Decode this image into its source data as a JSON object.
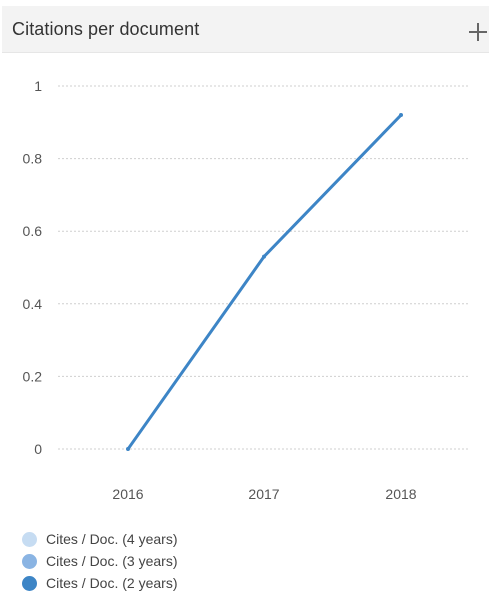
{
  "card": {
    "title": "Citations per document"
  },
  "icons": {
    "expand": "plus-icon"
  },
  "colors": {
    "line": "#3d85c6",
    "grid": "#cfcfcf",
    "legend_4y": "#c6dcf2",
    "legend_3y": "#8ab4e3",
    "legend_2y": "#3d85c6"
  },
  "chart_data": {
    "type": "line",
    "categories": [
      "2016",
      "2017",
      "2018"
    ],
    "series": [
      {
        "name": "Cites / Doc. (2 years)",
        "values": [
          0,
          0.53,
          0.92
        ]
      }
    ],
    "yticks": [
      "0",
      "0.2",
      "0.4",
      "0.6",
      "0.8",
      "1"
    ],
    "ylim": [
      0,
      1
    ],
    "grid": true,
    "legend_position": "bottom-left",
    "legend": [
      "Cites / Doc. (4 years)",
      "Cites / Doc. (3 years)",
      "Cites / Doc. (2 years)"
    ]
  }
}
